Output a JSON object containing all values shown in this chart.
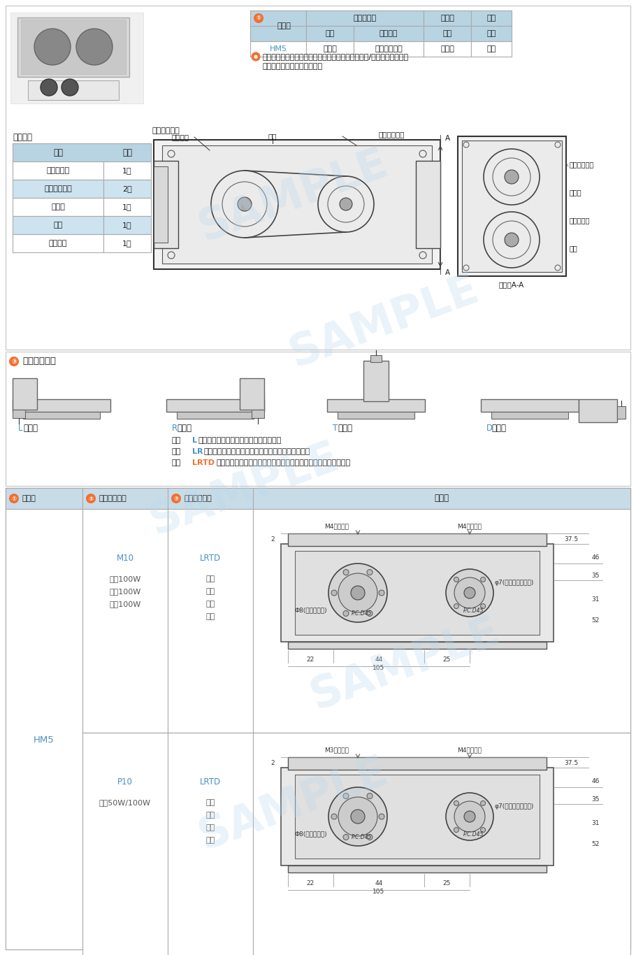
{
  "bg_color": "#ffffff",
  "light_blue_header": "#b8d4e3",
  "table_alt_row": "#cde3f0",
  "orange_color": "#f07030",
  "blue_color": "#4a90c4",
  "dark_text": "#1a1a1a",
  "gray_text": "#555555",
  "border_color": "#999999",
  "section_bg": "#c8dce8",
  "watermark": "SAMPLE",
  "parts_rows": [
    [
      "电机连接板",
      "1片"
    ],
    [
      "免键同步带轮",
      "2个"
    ],
    [
      "同步带",
      "1条"
    ],
    [
      "外壳",
      "1个"
    ],
    [
      "安装螺丝",
      "1批"
    ]
  ],
  "spec_data": [
    "HM5",
    "铝合金",
    "本色阳极氧化",
    "铝合金",
    "塑料"
  ],
  "notes": [
    [
      "代码",
      "L",
      "表示该转折件只能满足左折的安装需求；"
    ],
    [
      "代码",
      "LR",
      "表示该转折件可以同时满足左折、右折的安装需求；"
    ],
    [
      "代码",
      "LRTD",
      "表示该转折件可以同时满足左折、右折、上折及下折的安装需求。"
    ]
  ],
  "note_colors": [
    "#4a90c4",
    "#4a90c4",
    "#f07030"
  ]
}
